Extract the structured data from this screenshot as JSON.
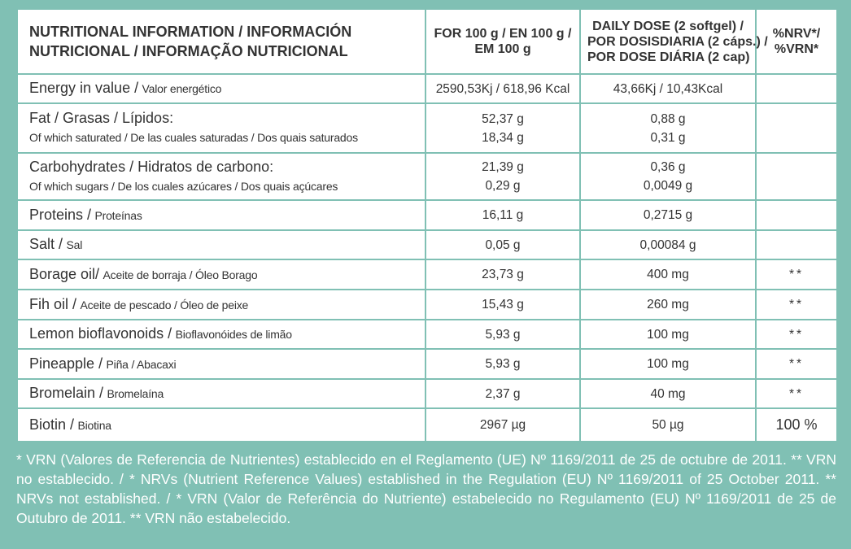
{
  "header": {
    "columns": [
      {
        "lines": [
          "NUTRITIONAL INFORMATION / INFORMACIÓN",
          "NUTRICIONAL / INFORMAÇÃO NUTRICIONAL"
        ]
      },
      {
        "lines": [
          "FOR 100 g / EN 100 g /",
          "EM 100 g"
        ]
      },
      {
        "lines": [
          "DAILY DOSE (2 softgel) /",
          "POR DOSISDIARIA (2 cáps.) /",
          "POR DOSE DIÁRIA (2 cap)"
        ]
      },
      {
        "lines": [
          "%NRV*/",
          "%VRN*"
        ]
      }
    ]
  },
  "table": {
    "rows": [
      {
        "lines": [
          {
            "name": "Energy in value /",
            "name_small": "Valor energético",
            "per100": "2590,53Kj / 618,96 Kcal",
            "dose": "43,66Kj / 10,43Kcal"
          }
        ]
      },
      {
        "lines": [
          {
            "name": "Fat / Grasas / Lípidos:",
            "per100": "52,37 g",
            "dose": "0,88 g"
          },
          {
            "name_small": "Of which saturated / De las cuales saturadas / Dos quais saturados",
            "per100": "18,34 g",
            "dose": "0,31 g"
          }
        ]
      },
      {
        "lines": [
          {
            "name": "Carbohydrates / Hidratos de carbono:",
            "per100": "21,39 g",
            "dose": "0,36 g"
          },
          {
            "name_small": "Of which  sugars /  De los cuales azúcares / Dos quais açúcares",
            "per100": "0,29 g",
            "dose": "0,0049 g"
          }
        ]
      },
      {
        "lines": [
          {
            "name": "Proteins /",
            "name_small": "Proteínas",
            "per100": "16,11 g",
            "dose": "0,2715 g"
          }
        ]
      },
      {
        "lines": [
          {
            "name": "Salt /",
            "name_small": "Sal",
            "per100": "0,05 g",
            "dose": "0,00084 g"
          }
        ]
      },
      {
        "lines": [
          {
            "name": "Borage oil/",
            "name_small": "Aceite de borraja / Óleo Borago",
            "per100": "23,73 g",
            "dose": "400 mg",
            "nrv": "**"
          }
        ]
      },
      {
        "lines": [
          {
            "name": "Fih oil /",
            "name_small": "Aceite de pescado / Óleo de peixe",
            "per100": "15,43 g",
            "dose": "260 mg",
            "nrv": "**"
          }
        ]
      },
      {
        "lines": [
          {
            "name": "Lemon bioflavonoids /",
            "name_small": "Bioflavonóides de limão",
            "per100": "5,93 g",
            "dose": "100 mg",
            "nrv": "**"
          }
        ]
      },
      {
        "lines": [
          {
            "name": "Pineapple /",
            "name_small": "Piña / Abacaxi",
            "per100": "5,93 g",
            "dose": "100 mg",
            "nrv": "**"
          }
        ]
      },
      {
        "lines": [
          {
            "name": "Bromelain /",
            "name_small": "Bromelaína",
            "per100": "2,37 g",
            "dose": "40 mg",
            "nrv": "**"
          }
        ]
      },
      {
        "lines": [
          {
            "name": "Biotin /",
            "name_small": "Biotina",
            "per100": "2967 µg",
            "dose": "50 µg",
            "nrv": "100 %"
          }
        ]
      }
    ]
  },
  "footnote": "* VRN (Valores de Referencia de Nutrientes) establecido en el Reglamento (UE) Nº 1169/2011 de 25 de octubre de 2011. ** VRN no establecido. / * NRVs (Nutrient Reference Values) established in the Regulation (EU) Nº 1169/2011 of 25 October 2011. ** NRVs  not established. / * VRN (Valor de Referência do Nutriente) estabelecido no Regulamento (EU) Nº 1169/2011 de 25 de Outubro de 2011. ** VRN não estabelecido."
}
